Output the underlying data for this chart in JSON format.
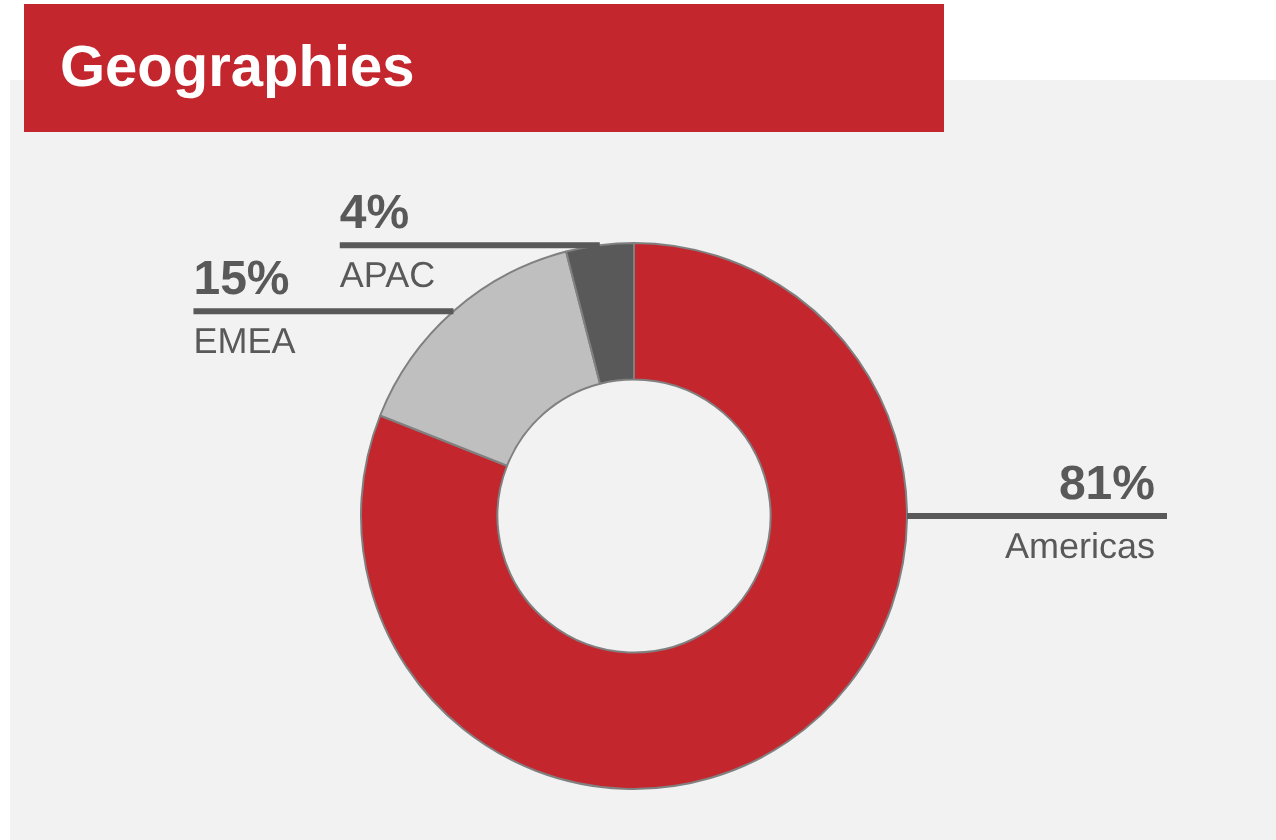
{
  "chart_data": {
    "type": "donut",
    "title": "Geographies",
    "categories": [
      "Americas",
      "EMEA",
      "APAC"
    ],
    "values": [
      81,
      15,
      4
    ],
    "value_labels": [
      "81%",
      "15%",
      "4%"
    ],
    "colors": [
      "#c4262e",
      "#bfbfbf",
      "#595959"
    ],
    "legend": false
  }
}
